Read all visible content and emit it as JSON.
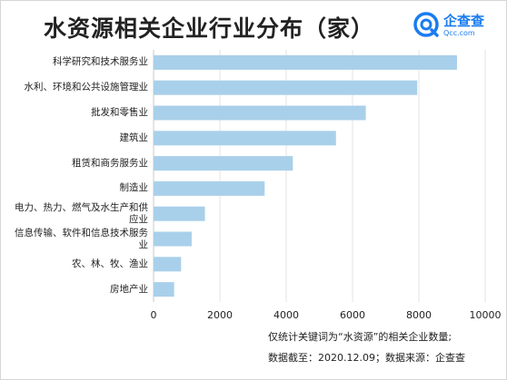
{
  "header": {
    "title": "水资源相关企业行业分布（家）",
    "logo_cn": "企查查",
    "logo_en": "Qcc.com"
  },
  "chart_data": {
    "type": "bar",
    "orientation": "horizontal",
    "title": "水资源相关企业行业分布（家）",
    "categories": [
      "科学研究和技术服务业",
      "水利、环境和公共设施管理业",
      "批发和零售业",
      "建筑业",
      "租赁和商务服务业",
      "制造业",
      "电力、热力、燃气及水生产和供应业",
      "信息传输、软件和信息技术服务业",
      "农、林、牧、渔业",
      "房地产业"
    ],
    "category_lines": [
      [
        "科学研究和技术服务业"
      ],
      [
        "水利、环境和公共设施管理业"
      ],
      [
        "批发和零售业"
      ],
      [
        "建筑业"
      ],
      [
        "租赁和商务服务业"
      ],
      [
        "制造业"
      ],
      [
        "电力、热力、燃气及水生产和供",
        "应业"
      ],
      [
        "信息传输、软件和信息技术服务",
        "业"
      ],
      [
        "农、林、牧、渔业"
      ],
      [
        "房地产业"
      ]
    ],
    "values": [
      9150,
      7950,
      6400,
      5500,
      4200,
      3350,
      1550,
      1150,
      830,
      620
    ],
    "xlim": [
      0,
      10000
    ],
    "xticks": [
      0,
      2000,
      4000,
      6000,
      8000,
      10000
    ],
    "grid": true,
    "bar_color": "#a9d0ea",
    "grid_color": "#e3e3e3"
  },
  "notes": {
    "line1": "仅统计关键词为“水资源”的相关企业数量;",
    "line2": "数据截至：2020.12.09；数据来源：企查查"
  },
  "colors": {
    "brand": "#1a7cf0"
  }
}
